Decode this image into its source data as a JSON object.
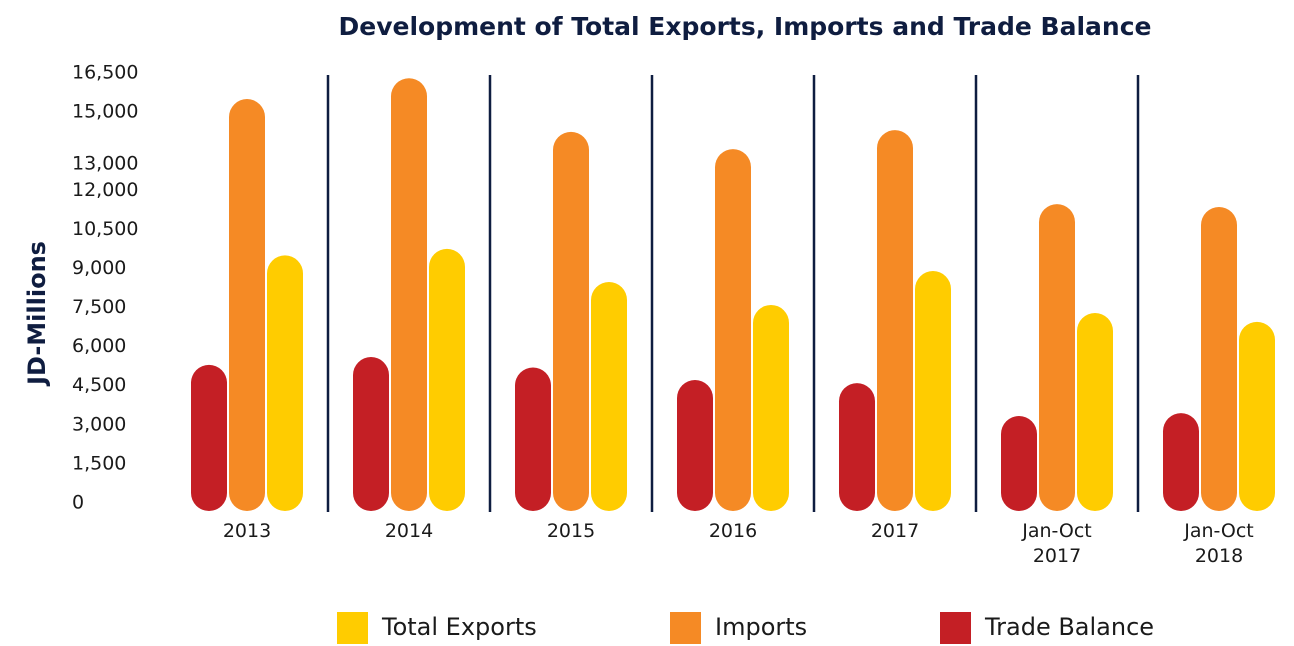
{
  "chart_data": {
    "type": "bar",
    "title": "Development of Total Exports, Imports and Trade Balance",
    "y_label": "JD-Millions",
    "categories": [
      "2013",
      "2014",
      "2015",
      "2016",
      "2017",
      "Jan-Oct 2017",
      "Jan-Oct 2018"
    ],
    "series": [
      {
        "name": "Total Exports",
        "color": "#ffcc00",
        "values": [
          9500,
          9750,
          8480,
          7600,
          8900,
          7290,
          6950
        ]
      },
      {
        "name": "Imports",
        "color": "#f58a25",
        "values": [
          15500,
          16300,
          14240,
          13580,
          14310,
          11470,
          11360
        ]
      },
      {
        "name": "Trade Balance",
        "color": "#c41f25",
        "values": [
          5300,
          5600,
          5200,
          4720,
          4600,
          3340,
          3450
        ]
      }
    ],
    "ylim": [
      0,
      16500
    ],
    "yticks": [
      0,
      {
        "value": 1500,
        "label": "1,500"
      },
      {
        "value": 3000,
        "label": "3,000"
      },
      {
        "value": 4500,
        "label": "4,500"
      },
      {
        "value": 6000,
        "label": "6,000"
      },
      {
        "value": 7500,
        "label": "7,500"
      },
      {
        "value": 9000,
        "label": "9,000"
      },
      {
        "value": 10500,
        "label": "10,500"
      },
      {
        "value": 12000,
        "label": "12,000"
      },
      {
        "value": 13000,
        "label": "13,000"
      },
      {
        "value": 15000,
        "label": "15,000"
      },
      {
        "value": 16500,
        "label": "16,500"
      }
    ],
    "grid": false,
    "legend": "bottom"
  }
}
